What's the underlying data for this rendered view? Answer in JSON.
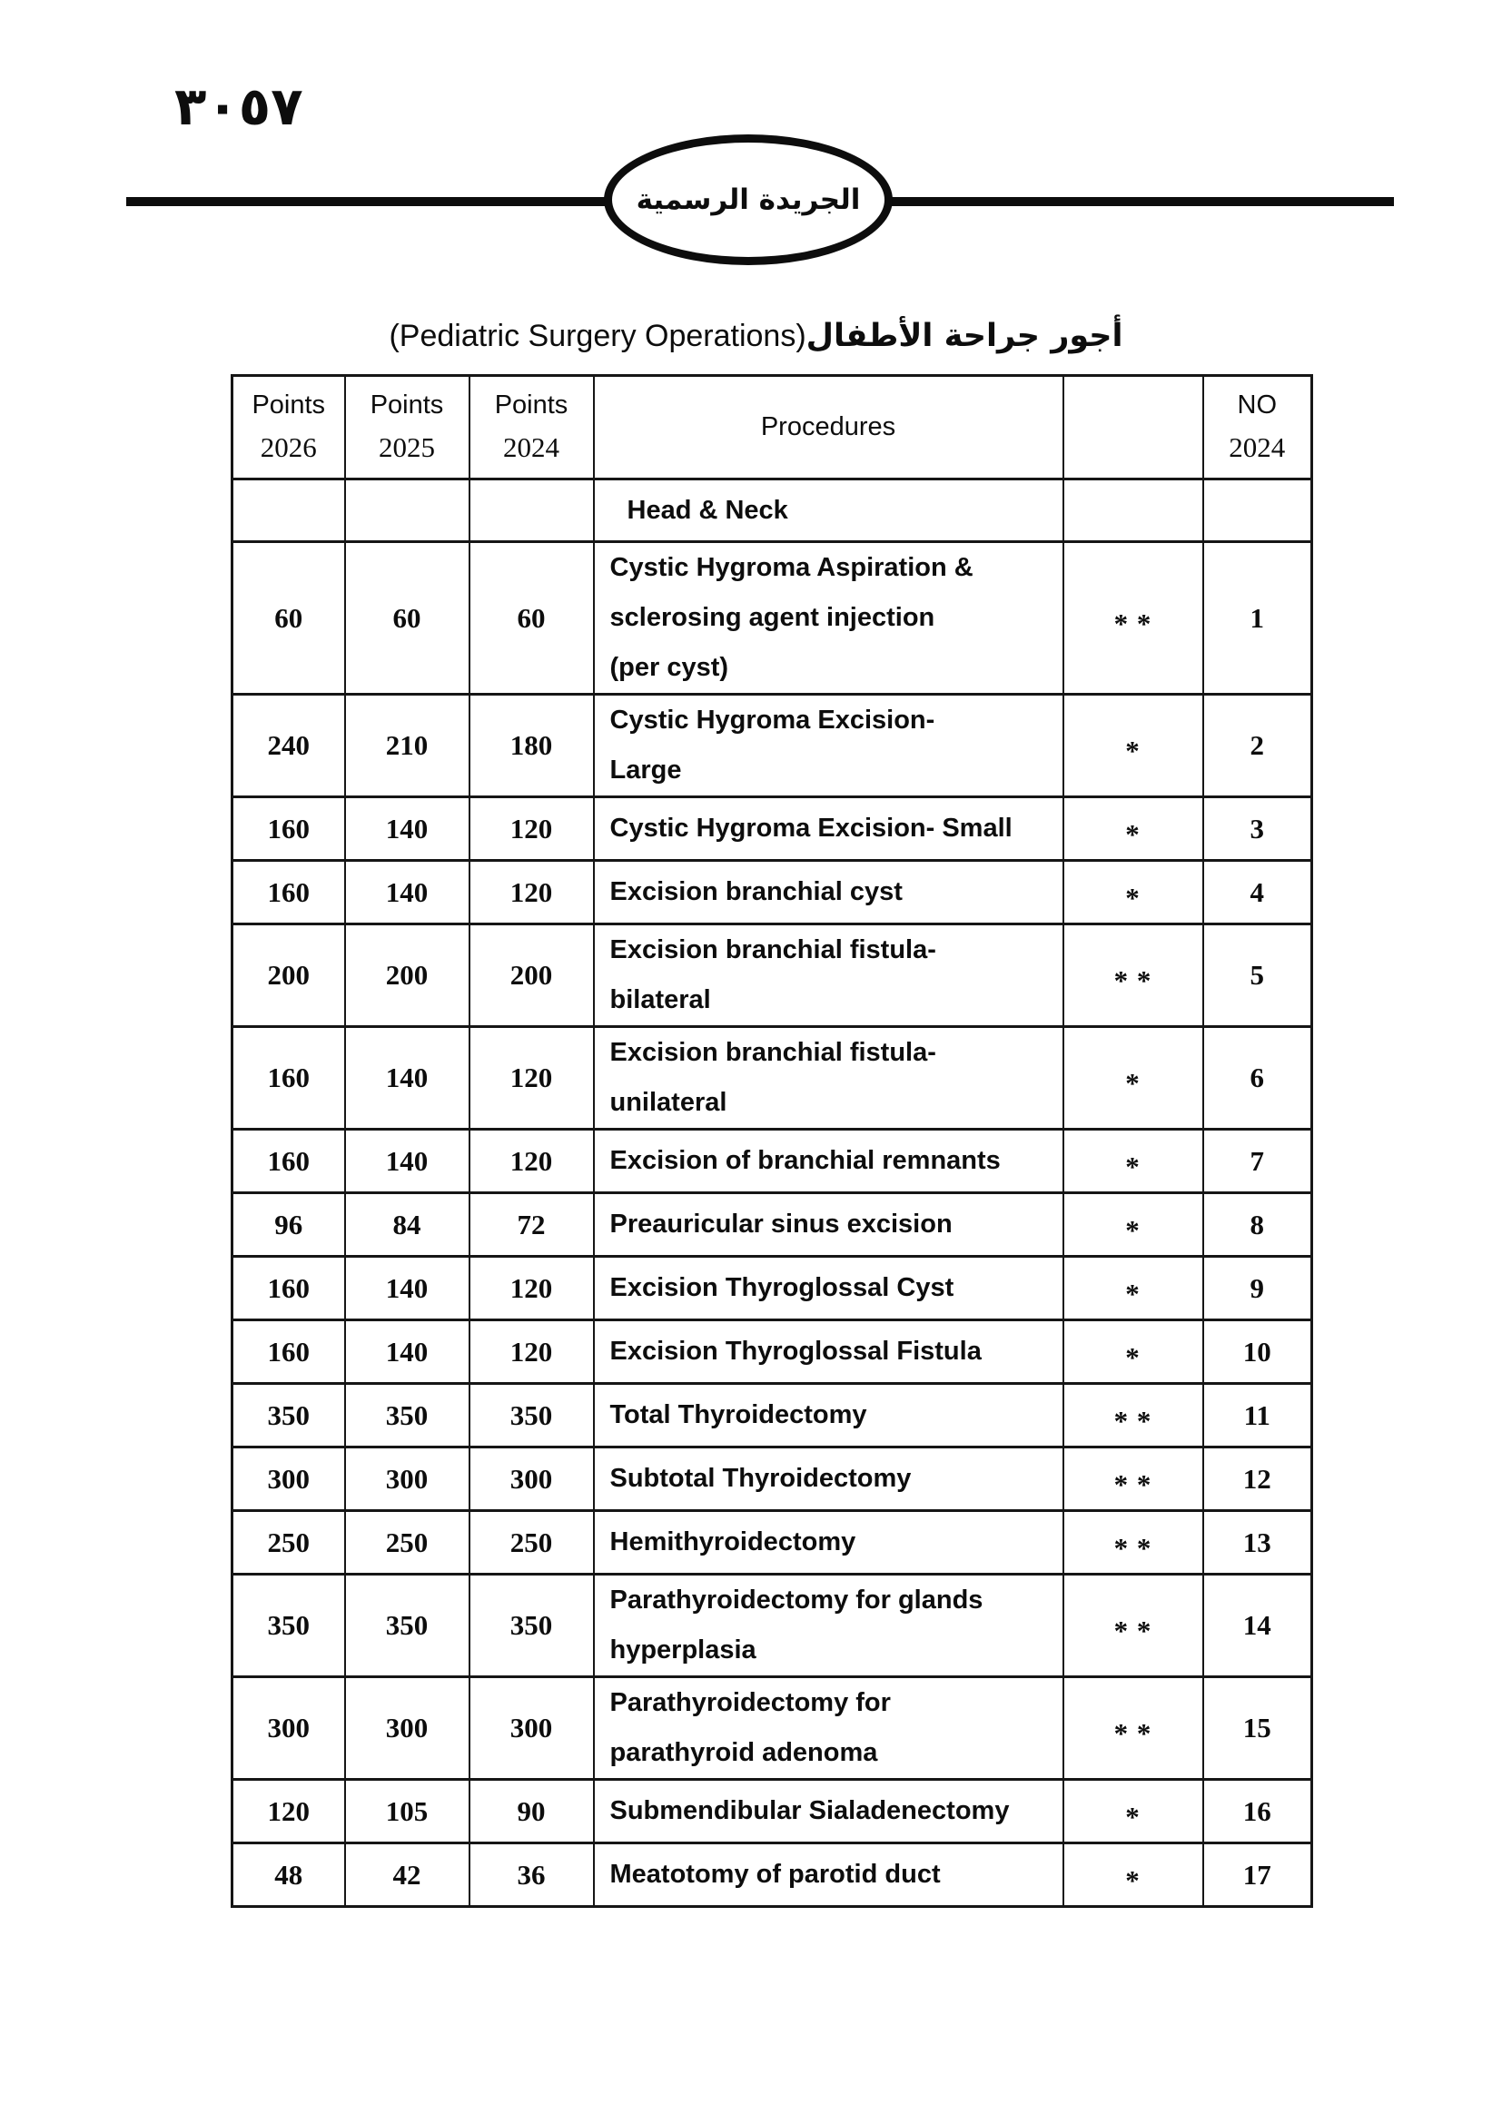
{
  "page": {
    "page_number_arabic": "٣٠٥٧",
    "gazette_name_arabic": "الجريدة الرسمية",
    "title_english": "(Pediatric Surgery Operations)",
    "title_arabic": "أجور جراحة الأطفال"
  },
  "table": {
    "columns": [
      {
        "line1": "Points",
        "line2": "2026"
      },
      {
        "line1": "Points",
        "line2": "2025"
      },
      {
        "line1": "Points",
        "line2": "2024"
      },
      {
        "line1": "Procedures",
        "line2": ""
      },
      {
        "line1": "",
        "line2": ""
      },
      {
        "line1": "NO",
        "line2": "2024"
      }
    ],
    "section_header": "Head & Neck",
    "rows": [
      {
        "p2026": "60",
        "p2025": "60",
        "p2024": "60",
        "procedure": [
          "Cystic Hygroma Aspiration &",
          "sclerosing agent injection",
          "(per cyst)"
        ],
        "stars": "* *",
        "no": "1"
      },
      {
        "p2026": "240",
        "p2025": "210",
        "p2024": "180",
        "procedure": [
          "Cystic Hygroma Excision-",
          "Large"
        ],
        "stars": "*",
        "no": "2"
      },
      {
        "p2026": "160",
        "p2025": "140",
        "p2024": "120",
        "procedure": [
          "Cystic Hygroma Excision- Small"
        ],
        "stars": "*",
        "no": "3"
      },
      {
        "p2026": "160",
        "p2025": "140",
        "p2024": "120",
        "procedure": [
          "Excision branchial cyst"
        ],
        "stars": "*",
        "no": "4"
      },
      {
        "p2026": "200",
        "p2025": "200",
        "p2024": "200",
        "procedure": [
          "Excision branchial fistula-",
          "bilateral"
        ],
        "stars": "* *",
        "no": "5"
      },
      {
        "p2026": "160",
        "p2025": "140",
        "p2024": "120",
        "procedure": [
          "Excision branchial fistula-",
          "unilateral"
        ],
        "stars": "*",
        "no": "6"
      },
      {
        "p2026": "160",
        "p2025": "140",
        "p2024": "120",
        "procedure": [
          "Excision of branchial remnants"
        ],
        "stars": "*",
        "no": "7"
      },
      {
        "p2026": "96",
        "p2025": "84",
        "p2024": "72",
        "procedure": [
          "Preauricular sinus excision"
        ],
        "stars": "*",
        "no": "8"
      },
      {
        "p2026": "160",
        "p2025": "140",
        "p2024": "120",
        "procedure": [
          "Excision Thyroglossal Cyst"
        ],
        "stars": "*",
        "no": "9"
      },
      {
        "p2026": "160",
        "p2025": "140",
        "p2024": "120",
        "procedure": [
          "Excision Thyroglossal Fistula"
        ],
        "stars": "*",
        "no": "10"
      },
      {
        "p2026": "350",
        "p2025": "350",
        "p2024": "350",
        "procedure": [
          "Total Thyroidectomy"
        ],
        "stars": "* *",
        "no": "11"
      },
      {
        "p2026": "300",
        "p2025": "300",
        "p2024": "300",
        "procedure": [
          "Subtotal Thyroidectomy"
        ],
        "stars": "* *",
        "no": "12"
      },
      {
        "p2026": "250",
        "p2025": "250",
        "p2024": "250",
        "procedure": [
          "Hemithyroidectomy"
        ],
        "stars": "* *",
        "no": "13"
      },
      {
        "p2026": "350",
        "p2025": "350",
        "p2024": "350",
        "procedure": [
          "Parathyroidectomy for glands",
          "hyperplasia"
        ],
        "stars": "* *",
        "no": "14"
      },
      {
        "p2026": "300",
        "p2025": "300",
        "p2024": "300",
        "procedure": [
          "Parathyroidectomy for",
          "parathyroid adenoma"
        ],
        "stars": "* *",
        "no": "15"
      },
      {
        "p2026": "120",
        "p2025": "105",
        "p2024": "90",
        "procedure": [
          "Submendibular Sialadenectomy"
        ],
        "stars": "*",
        "no": "16"
      },
      {
        "p2026": "48",
        "p2025": "42",
        "p2024": "36",
        "procedure": [
          "Meatotomy of parotid duct"
        ],
        "stars": "*",
        "no": "17"
      }
    ]
  }
}
